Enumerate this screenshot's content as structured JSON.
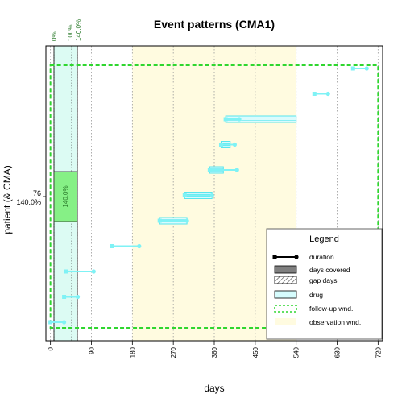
{
  "chart_data": {
    "type": "timeline",
    "title": "Event patterns (CMA1)",
    "xlabel": "days",
    "ylabel": "patient (& CMA)",
    "x_ticks": [
      0,
      90,
      180,
      270,
      360,
      450,
      540,
      630,
      720
    ],
    "x_tick_labels": [
      "0",
      "90",
      "180",
      "270",
      "360",
      "450",
      "540",
      "630",
      "720"
    ],
    "xlim": [
      -10,
      730
    ],
    "patient_label": "76",
    "cma_label": "140.0%",
    "cma_value": 1.4,
    "cma_bar_text": "140.0%",
    "cma_axis_labels": [
      "0%",
      "100%",
      "140.0%"
    ],
    "observation_window": {
      "start": 180,
      "end": 540
    },
    "follow_up_window": {
      "start": 0,
      "end": 720
    },
    "events": [
      {
        "start": 0,
        "end": 30,
        "covered": null
      },
      {
        "start": 30,
        "end": 60,
        "covered": null
      },
      {
        "start": 35,
        "end": 95,
        "covered": null
      },
      {
        "start": 135,
        "end": 195,
        "covered": null
      },
      {
        "start": 240,
        "end": 300,
        "covered": [
          240,
          300
        ]
      },
      {
        "start": 295,
        "end": 355,
        "covered": [
          295,
          355
        ]
      },
      {
        "start": 350,
        "end": 410,
        "covered": [
          350,
          380
        ]
      },
      {
        "start": 375,
        "end": 405,
        "covered": [
          375,
          395
        ]
      },
      {
        "start": 385,
        "end": 415,
        "covered": [
          385,
          540
        ]
      },
      {
        "start": 580,
        "end": 610,
        "covered": null
      },
      {
        "start": 665,
        "end": 695,
        "covered": null
      }
    ],
    "legend": {
      "title": "Legend",
      "items": [
        "duration",
        "days covered",
        "gap days",
        "drug",
        "follow-up wnd.",
        "observation wnd."
      ]
    },
    "colors": {
      "drug": "#7ff2f5",
      "observation": "#fffbe0",
      "follow_up": "#2fd62f",
      "cma_panel": "#dcfbf3",
      "cma_bar": "#86f086",
      "cma_text": "#2a7a2a"
    }
  }
}
